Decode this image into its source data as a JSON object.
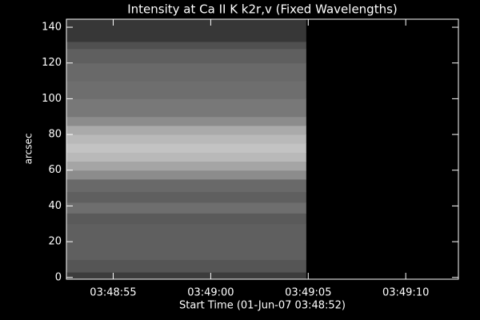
{
  "chart_data": {
    "type": "image",
    "title": "Intensity at Ca II K k2r,v (Fixed Wavelengths)",
    "x_label": "Start Time (01-Jun-07 03:48:52)",
    "y_label": "arcsec",
    "xlim": [
      52.6,
      72.7
    ],
    "xticks": [
      {
        "value": 55,
        "label": "03:48:55"
      },
      {
        "value": 60,
        "label": "03:49:00"
      },
      {
        "value": 65,
        "label": "03:49:05"
      },
      {
        "value": 70,
        "label": "03:49:10"
      }
    ],
    "ylim": [
      -1,
      144.5
    ],
    "yticks": [
      0,
      20,
      40,
      60,
      80,
      100,
      120,
      140
    ],
    "image_x": [
      52.6,
      64.9
    ],
    "y_bins": [
      -1,
      3,
      10,
      20,
      30,
      36,
      42,
      48,
      55,
      60,
      65,
      70,
      75,
      80,
      85,
      90,
      100,
      110,
      120,
      128,
      132,
      144.5
    ],
    "brightness": [
      60,
      85,
      95,
      95,
      90,
      110,
      95,
      105,
      140,
      165,
      185,
      195,
      185,
      170,
      140,
      120,
      110,
      105,
      95,
      80,
      55
    ]
  }
}
